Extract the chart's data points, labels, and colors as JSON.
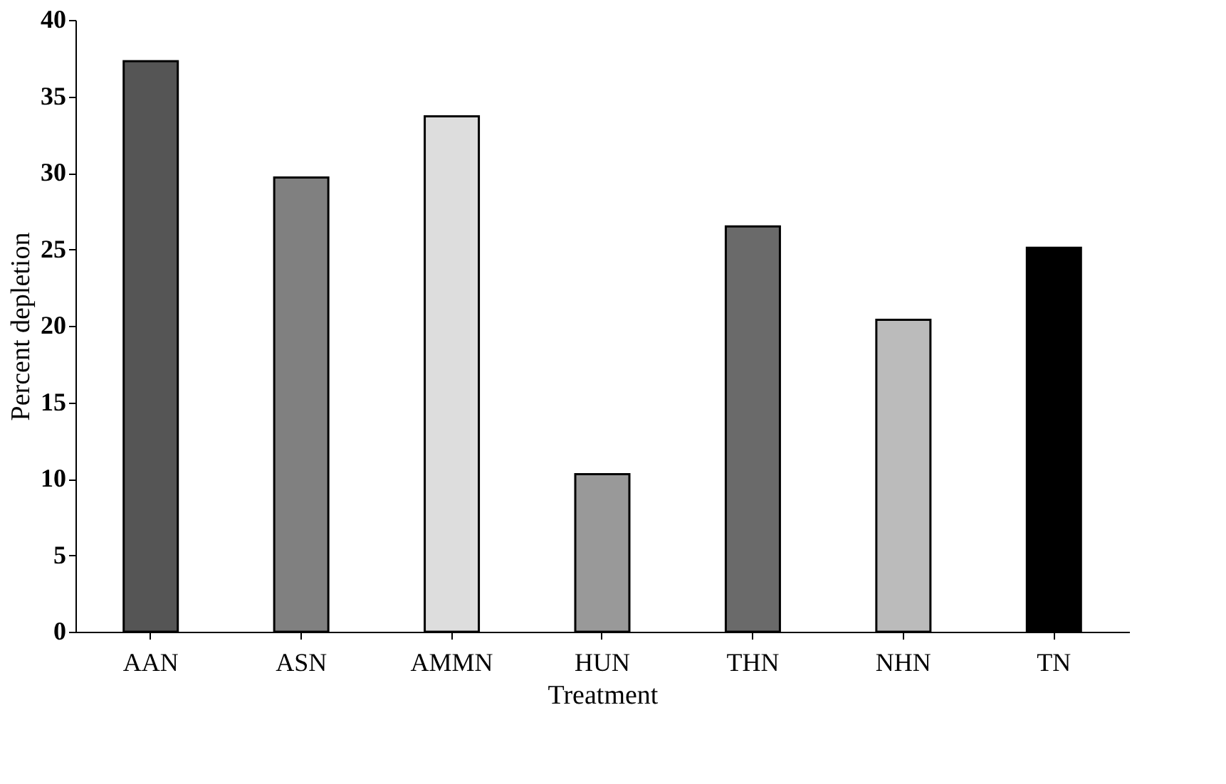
{
  "chart_data": {
    "type": "bar",
    "xlabel": "Treatment",
    "ylabel": "Percent depletion",
    "categories": [
      "AAN",
      "ASN",
      "AMMN",
      "HUN",
      "THN",
      "NHN",
      "TN"
    ],
    "values": [
      37.3,
      29.7,
      33.7,
      10.3,
      26.5,
      20.4,
      25.1
    ],
    "colors": [
      "#555555",
      "#808080",
      "#dddddd",
      "#999999",
      "#6a6a6a",
      "#bbbbbb",
      "#000000"
    ],
    "ylim": [
      0,
      40
    ],
    "yticks": [
      0,
      5,
      10,
      15,
      20,
      25,
      30,
      35,
      40
    ],
    "grid": false,
    "legend": false
  }
}
